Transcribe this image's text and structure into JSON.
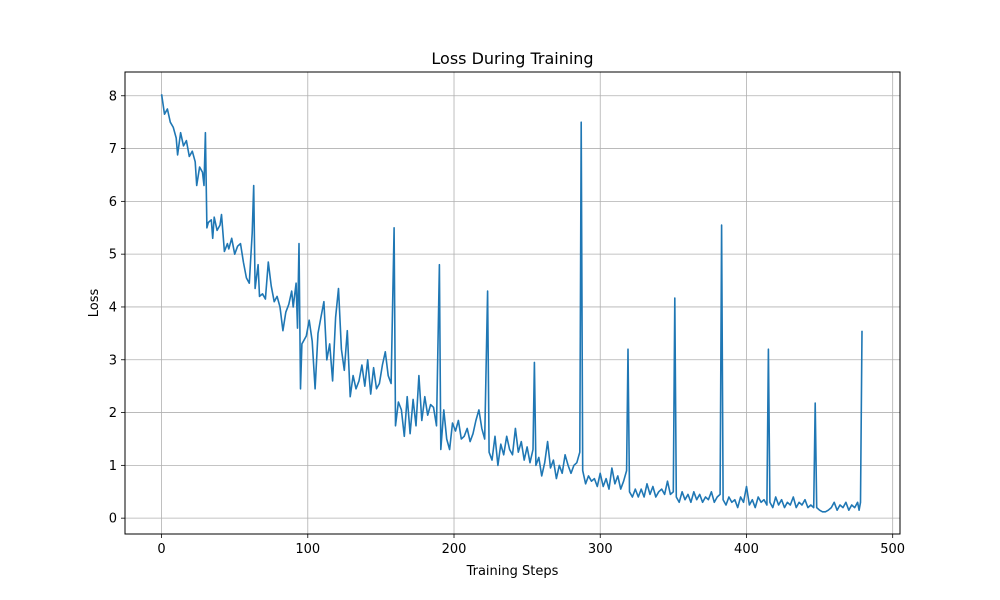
{
  "chart_data": {
    "type": "line",
    "title": "Loss During Training",
    "xlabel": "Training Steps",
    "ylabel": "Loss",
    "xlim": [
      -25,
      505
    ],
    "ylim": [
      -0.3,
      8.45
    ],
    "xticks": [
      0,
      100,
      200,
      300,
      400,
      500
    ],
    "yticks": [
      0,
      1,
      2,
      3,
      4,
      5,
      6,
      7,
      8
    ],
    "grid": true,
    "series": [
      {
        "color": "#1f77b4",
        "points": [
          [
            0,
            8.03
          ],
          [
            2,
            7.65
          ],
          [
            4,
            7.75
          ],
          [
            6,
            7.5
          ],
          [
            8,
            7.4
          ],
          [
            10,
            7.2
          ],
          [
            11,
            6.88
          ],
          [
            13,
            7.3
          ],
          [
            15,
            7.05
          ],
          [
            17,
            7.15
          ],
          [
            19,
            6.85
          ],
          [
            21,
            6.95
          ],
          [
            23,
            6.75
          ],
          [
            24,
            6.3
          ],
          [
            26,
            6.65
          ],
          [
            28,
            6.55
          ],
          [
            29,
            6.3
          ],
          [
            30,
            7.3
          ],
          [
            31,
            5.5
          ],
          [
            32,
            5.6
          ],
          [
            34,
            5.65
          ],
          [
            35,
            5.3
          ],
          [
            36,
            5.7
          ],
          [
            38,
            5.45
          ],
          [
            40,
            5.55
          ],
          [
            41,
            5.75
          ],
          [
            43,
            5.05
          ],
          [
            45,
            5.2
          ],
          [
            46,
            5.1
          ],
          [
            48,
            5.3
          ],
          [
            50,
            5.0
          ],
          [
            52,
            5.15
          ],
          [
            54,
            5.2
          ],
          [
            56,
            4.85
          ],
          [
            58,
            4.55
          ],
          [
            60,
            4.45
          ],
          [
            62,
            5.4
          ],
          [
            63,
            6.3
          ],
          [
            64,
            4.35
          ],
          [
            66,
            4.8
          ],
          [
            67,
            4.2
          ],
          [
            69,
            4.25
          ],
          [
            71,
            4.15
          ],
          [
            73,
            4.85
          ],
          [
            75,
            4.4
          ],
          [
            77,
            4.1
          ],
          [
            79,
            4.2
          ],
          [
            81,
            4.0
          ],
          [
            83,
            3.55
          ],
          [
            85,
            3.9
          ],
          [
            87,
            4.05
          ],
          [
            89,
            4.3
          ],
          [
            90,
            4.0
          ],
          [
            92,
            4.45
          ],
          [
            93,
            3.6
          ],
          [
            94,
            5.2
          ],
          [
            95,
            2.45
          ],
          [
            96,
            3.3
          ],
          [
            97,
            3.35
          ],
          [
            99,
            3.45
          ],
          [
            101,
            3.75
          ],
          [
            103,
            3.35
          ],
          [
            105,
            2.45
          ],
          [
            107,
            3.5
          ],
          [
            109,
            3.8
          ],
          [
            111,
            4.1
          ],
          [
            113,
            3.0
          ],
          [
            115,
            3.3
          ],
          [
            117,
            2.6
          ],
          [
            119,
            3.8
          ],
          [
            121,
            4.35
          ],
          [
            123,
            3.2
          ],
          [
            125,
            2.8
          ],
          [
            127,
            3.55
          ],
          [
            129,
            2.3
          ],
          [
            131,
            2.7
          ],
          [
            133,
            2.45
          ],
          [
            135,
            2.6
          ],
          [
            137,
            2.9
          ],
          [
            139,
            2.5
          ],
          [
            141,
            3.0
          ],
          [
            143,
            2.35
          ],
          [
            145,
            2.85
          ],
          [
            147,
            2.45
          ],
          [
            149,
            2.55
          ],
          [
            151,
            2.9
          ],
          [
            153,
            3.15
          ],
          [
            155,
            2.7
          ],
          [
            157,
            2.55
          ],
          [
            159,
            5.5
          ],
          [
            160,
            1.75
          ],
          [
            162,
            2.2
          ],
          [
            164,
            2.05
          ],
          [
            166,
            1.55
          ],
          [
            168,
            2.3
          ],
          [
            170,
            1.6
          ],
          [
            172,
            2.25
          ],
          [
            174,
            1.75
          ],
          [
            176,
            2.7
          ],
          [
            178,
            1.85
          ],
          [
            180,
            2.3
          ],
          [
            182,
            1.95
          ],
          [
            184,
            2.15
          ],
          [
            186,
            2.1
          ],
          [
            188,
            1.75
          ],
          [
            190,
            4.8
          ],
          [
            191,
            1.3
          ],
          [
            193,
            2.05
          ],
          [
            195,
            1.5
          ],
          [
            197,
            1.3
          ],
          [
            199,
            1.8
          ],
          [
            201,
            1.65
          ],
          [
            203,
            1.85
          ],
          [
            205,
            1.5
          ],
          [
            207,
            1.55
          ],
          [
            209,
            1.7
          ],
          [
            211,
            1.45
          ],
          [
            213,
            1.6
          ],
          [
            215,
            1.85
          ],
          [
            217,
            2.05
          ],
          [
            219,
            1.7
          ],
          [
            221,
            1.5
          ],
          [
            223,
            4.3
          ],
          [
            224,
            1.25
          ],
          [
            226,
            1.1
          ],
          [
            228,
            1.55
          ],
          [
            230,
            1.0
          ],
          [
            232,
            1.4
          ],
          [
            234,
            1.2
          ],
          [
            236,
            1.55
          ],
          [
            238,
            1.3
          ],
          [
            240,
            1.2
          ],
          [
            242,
            1.7
          ],
          [
            244,
            1.25
          ],
          [
            246,
            1.45
          ],
          [
            248,
            1.1
          ],
          [
            250,
            1.35
          ],
          [
            252,
            1.05
          ],
          [
            254,
            1.3
          ],
          [
            255,
            2.95
          ],
          [
            256,
            1.0
          ],
          [
            258,
            1.15
          ],
          [
            260,
            0.8
          ],
          [
            262,
            1.05
          ],
          [
            264,
            1.45
          ],
          [
            266,
            0.95
          ],
          [
            268,
            1.1
          ],
          [
            270,
            0.75
          ],
          [
            272,
            1.0
          ],
          [
            274,
            0.85
          ],
          [
            276,
            1.2
          ],
          [
            278,
            1.0
          ],
          [
            280,
            0.85
          ],
          [
            282,
            1.0
          ],
          [
            284,
            1.05
          ],
          [
            286,
            1.25
          ],
          [
            287,
            7.5
          ],
          [
            288,
            0.9
          ],
          [
            290,
            0.65
          ],
          [
            292,
            0.8
          ],
          [
            294,
            0.7
          ],
          [
            296,
            0.75
          ],
          [
            298,
            0.6
          ],
          [
            300,
            0.85
          ],
          [
            302,
            0.6
          ],
          [
            304,
            0.75
          ],
          [
            306,
            0.55
          ],
          [
            308,
            0.95
          ],
          [
            310,
            0.65
          ],
          [
            312,
            0.8
          ],
          [
            314,
            0.55
          ],
          [
            316,
            0.7
          ],
          [
            318,
            0.9
          ],
          [
            319,
            3.2
          ],
          [
            320,
            0.5
          ],
          [
            322,
            0.4
          ],
          [
            324,
            0.55
          ],
          [
            326,
            0.4
          ],
          [
            328,
            0.55
          ],
          [
            330,
            0.4
          ],
          [
            332,
            0.65
          ],
          [
            334,
            0.45
          ],
          [
            336,
            0.6
          ],
          [
            338,
            0.4
          ],
          [
            340,
            0.5
          ],
          [
            342,
            0.55
          ],
          [
            344,
            0.45
          ],
          [
            346,
            0.7
          ],
          [
            348,
            0.45
          ],
          [
            350,
            0.5
          ],
          [
            351,
            4.17
          ],
          [
            352,
            0.4
          ],
          [
            354,
            0.3
          ],
          [
            356,
            0.5
          ],
          [
            358,
            0.35
          ],
          [
            360,
            0.45
          ],
          [
            362,
            0.3
          ],
          [
            364,
            0.5
          ],
          [
            366,
            0.35
          ],
          [
            368,
            0.45
          ],
          [
            370,
            0.3
          ],
          [
            372,
            0.4
          ],
          [
            374,
            0.35
          ],
          [
            376,
            0.5
          ],
          [
            378,
            0.3
          ],
          [
            380,
            0.4
          ],
          [
            382,
            0.45
          ],
          [
            383,
            5.55
          ],
          [
            384,
            0.35
          ],
          [
            386,
            0.25
          ],
          [
            388,
            0.4
          ],
          [
            390,
            0.3
          ],
          [
            392,
            0.35
          ],
          [
            394,
            0.2
          ],
          [
            396,
            0.4
          ],
          [
            398,
            0.3
          ],
          [
            400,
            0.6
          ],
          [
            402,
            0.25
          ],
          [
            404,
            0.35
          ],
          [
            406,
            0.2
          ],
          [
            408,
            0.4
          ],
          [
            410,
            0.3
          ],
          [
            412,
            0.35
          ],
          [
            414,
            0.25
          ],
          [
            415,
            3.2
          ],
          [
            416,
            0.3
          ],
          [
            418,
            0.2
          ],
          [
            420,
            0.4
          ],
          [
            422,
            0.25
          ],
          [
            424,
            0.35
          ],
          [
            426,
            0.2
          ],
          [
            428,
            0.3
          ],
          [
            430,
            0.25
          ],
          [
            432,
            0.4
          ],
          [
            434,
            0.2
          ],
          [
            436,
            0.3
          ],
          [
            438,
            0.25
          ],
          [
            440,
            0.35
          ],
          [
            442,
            0.2
          ],
          [
            444,
            0.25
          ],
          [
            446,
            0.2
          ],
          [
            447,
            2.18
          ],
          [
            448,
            0.2
          ],
          [
            450,
            0.15
          ],
          [
            452,
            0.12
          ],
          [
            454,
            0.12
          ],
          [
            456,
            0.15
          ],
          [
            458,
            0.2
          ],
          [
            460,
            0.3
          ],
          [
            462,
            0.15
          ],
          [
            464,
            0.25
          ],
          [
            466,
            0.2
          ],
          [
            468,
            0.3
          ],
          [
            470,
            0.15
          ],
          [
            472,
            0.25
          ],
          [
            474,
            0.2
          ],
          [
            476,
            0.3
          ],
          [
            477,
            0.15
          ],
          [
            478,
            0.3
          ],
          [
            479,
            3.55
          ]
        ]
      }
    ]
  }
}
